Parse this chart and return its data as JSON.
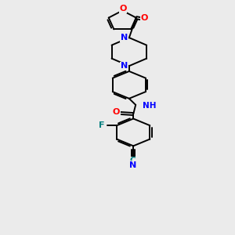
{
  "bg_color": "#ebebeb",
  "atom_colors": {
    "O": "#ff0000",
    "N": "#0000ff",
    "F": "#008080",
    "C_label": "#000000",
    "NH": "#0000cc",
    "H": "#008080"
  },
  "bond_color": "#000000",
  "line_width": 1.4,
  "xlim": [
    0,
    10
  ],
  "ylim": [
    0,
    14
  ]
}
